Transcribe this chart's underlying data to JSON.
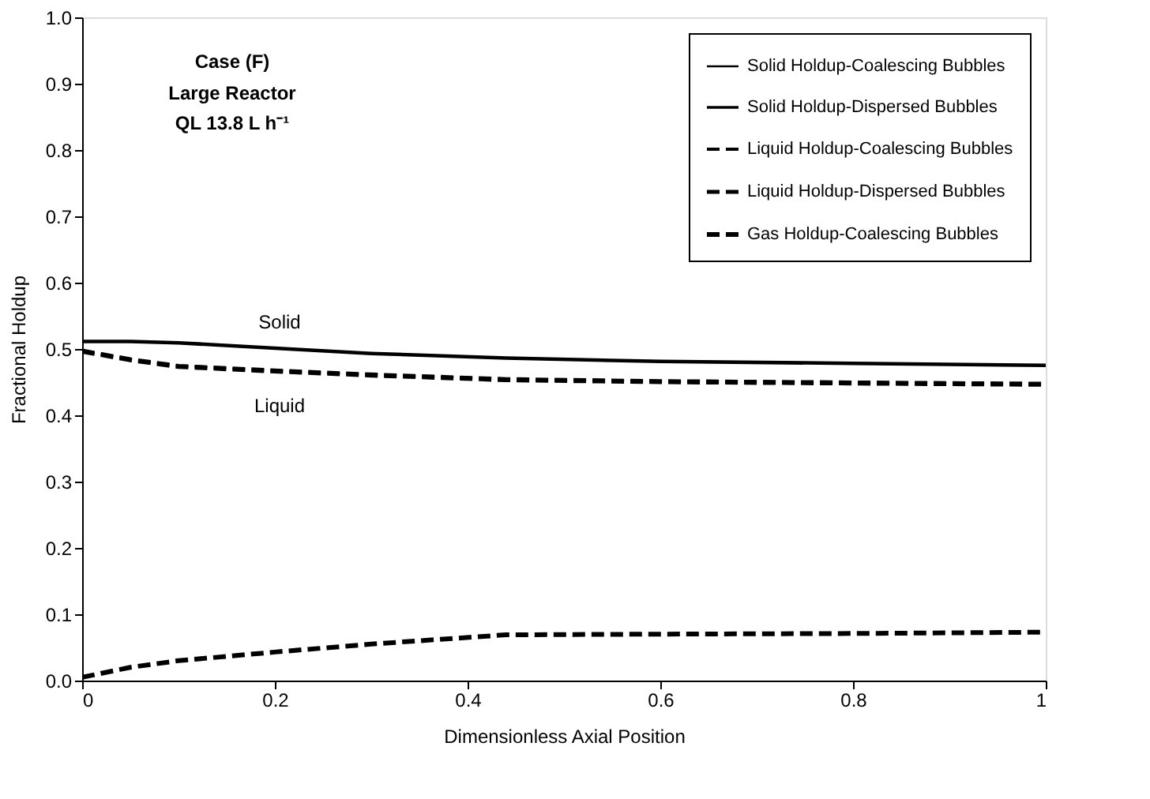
{
  "chart_data": {
    "type": "line",
    "xlabel": "Dimensionless Axial Position",
    "ylabel": "Fractional Holdup",
    "annotations": [
      "Case (F)",
      "Large Reactor",
      "QL 13.8 L h⁻¹",
      "Solid",
      "Liquid"
    ],
    "x": [
      0,
      0.05,
      0.1,
      0.2,
      0.3,
      0.44,
      0.6,
      0.8,
      1.0
    ],
    "series": [
      {
        "name": "Solid Holdup-Coalescing Bubbles",
        "color": "#000000",
        "line_style": "solid",
        "values": [
          0.51,
          0.51,
          0.508,
          0.5,
          0.492,
          0.485,
          0.48,
          0.477,
          0.474
        ]
      },
      {
        "name": "Solid Holdup-Dispersed Bubbles",
        "color": "#000000",
        "line_style": "solid",
        "values": [
          0.512,
          0.512,
          0.51,
          0.502,
          0.494,
          0.487,
          0.482,
          0.479,
          0.476
        ]
      },
      {
        "name": "Liquid Holdup-Coalescing Bubbles",
        "color": "#000000",
        "line_style": "dashed",
        "values": [
          0.498,
          0.485,
          0.475,
          0.468,
          0.462,
          0.455,
          0.452,
          0.45,
          0.448
        ]
      },
      {
        "name": "Liquid Holdup-Dispersed Bubbles",
        "color": "#000000",
        "line_style": "dashed",
        "values": [
          0.496,
          0.483,
          0.473,
          0.466,
          0.46,
          0.453,
          0.45,
          0.448,
          0.446
        ]
      },
      {
        "name": "Gas Holdup-Coalescing Bubbles",
        "color": "#000000",
        "line_style": "dashed",
        "values": [
          0.005,
          0.02,
          0.03,
          0.043,
          0.055,
          0.069,
          0.07,
          0.071,
          0.073
        ]
      }
    ],
    "xlim": [
      0,
      1
    ],
    "xticks": [
      0,
      0.2,
      0.4,
      0.6,
      0.8,
      1
    ],
    "ylim": [
      0,
      1
    ],
    "yticks": [
      {
        "value": 0,
        "label": "0.0"
      },
      0.1,
      0.2,
      0.3,
      0.4,
      0.5,
      0.6,
      0.7,
      0.8,
      0.9,
      {
        "value": 1,
        "label": "1.0"
      }
    ],
    "grid": false,
    "legend": "top right"
  }
}
